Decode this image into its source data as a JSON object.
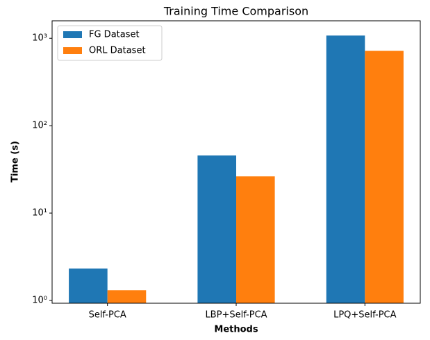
{
  "chart_data": {
    "type": "bar",
    "title": "Training Time Comparison",
    "xlabel": "Methods",
    "ylabel": "Time (s)",
    "categories": [
      "Self-PCA",
      "LBP+Self-PCA",
      "LPQ+Self-PCA"
    ],
    "series": [
      {
        "name": "FG Dataset",
        "color": "#1f77b4",
        "values": [
          2.32,
          45.6,
          1075
        ]
      },
      {
        "name": "ORL Dataset",
        "color": "#ff7f0e",
        "values": [
          1.31,
          26.3,
          720
        ]
      }
    ],
    "ylim": [
      0.93,
      1585
    ],
    "log_y": true,
    "yticks": [
      {
        "value": 1,
        "label": "10⁰"
      },
      {
        "value": 10,
        "label": "10¹"
      },
      {
        "value": 100,
        "label": "10²"
      },
      {
        "value": 1000,
        "label": "10³"
      }
    ],
    "legend": "upper left",
    "grid": false
  }
}
